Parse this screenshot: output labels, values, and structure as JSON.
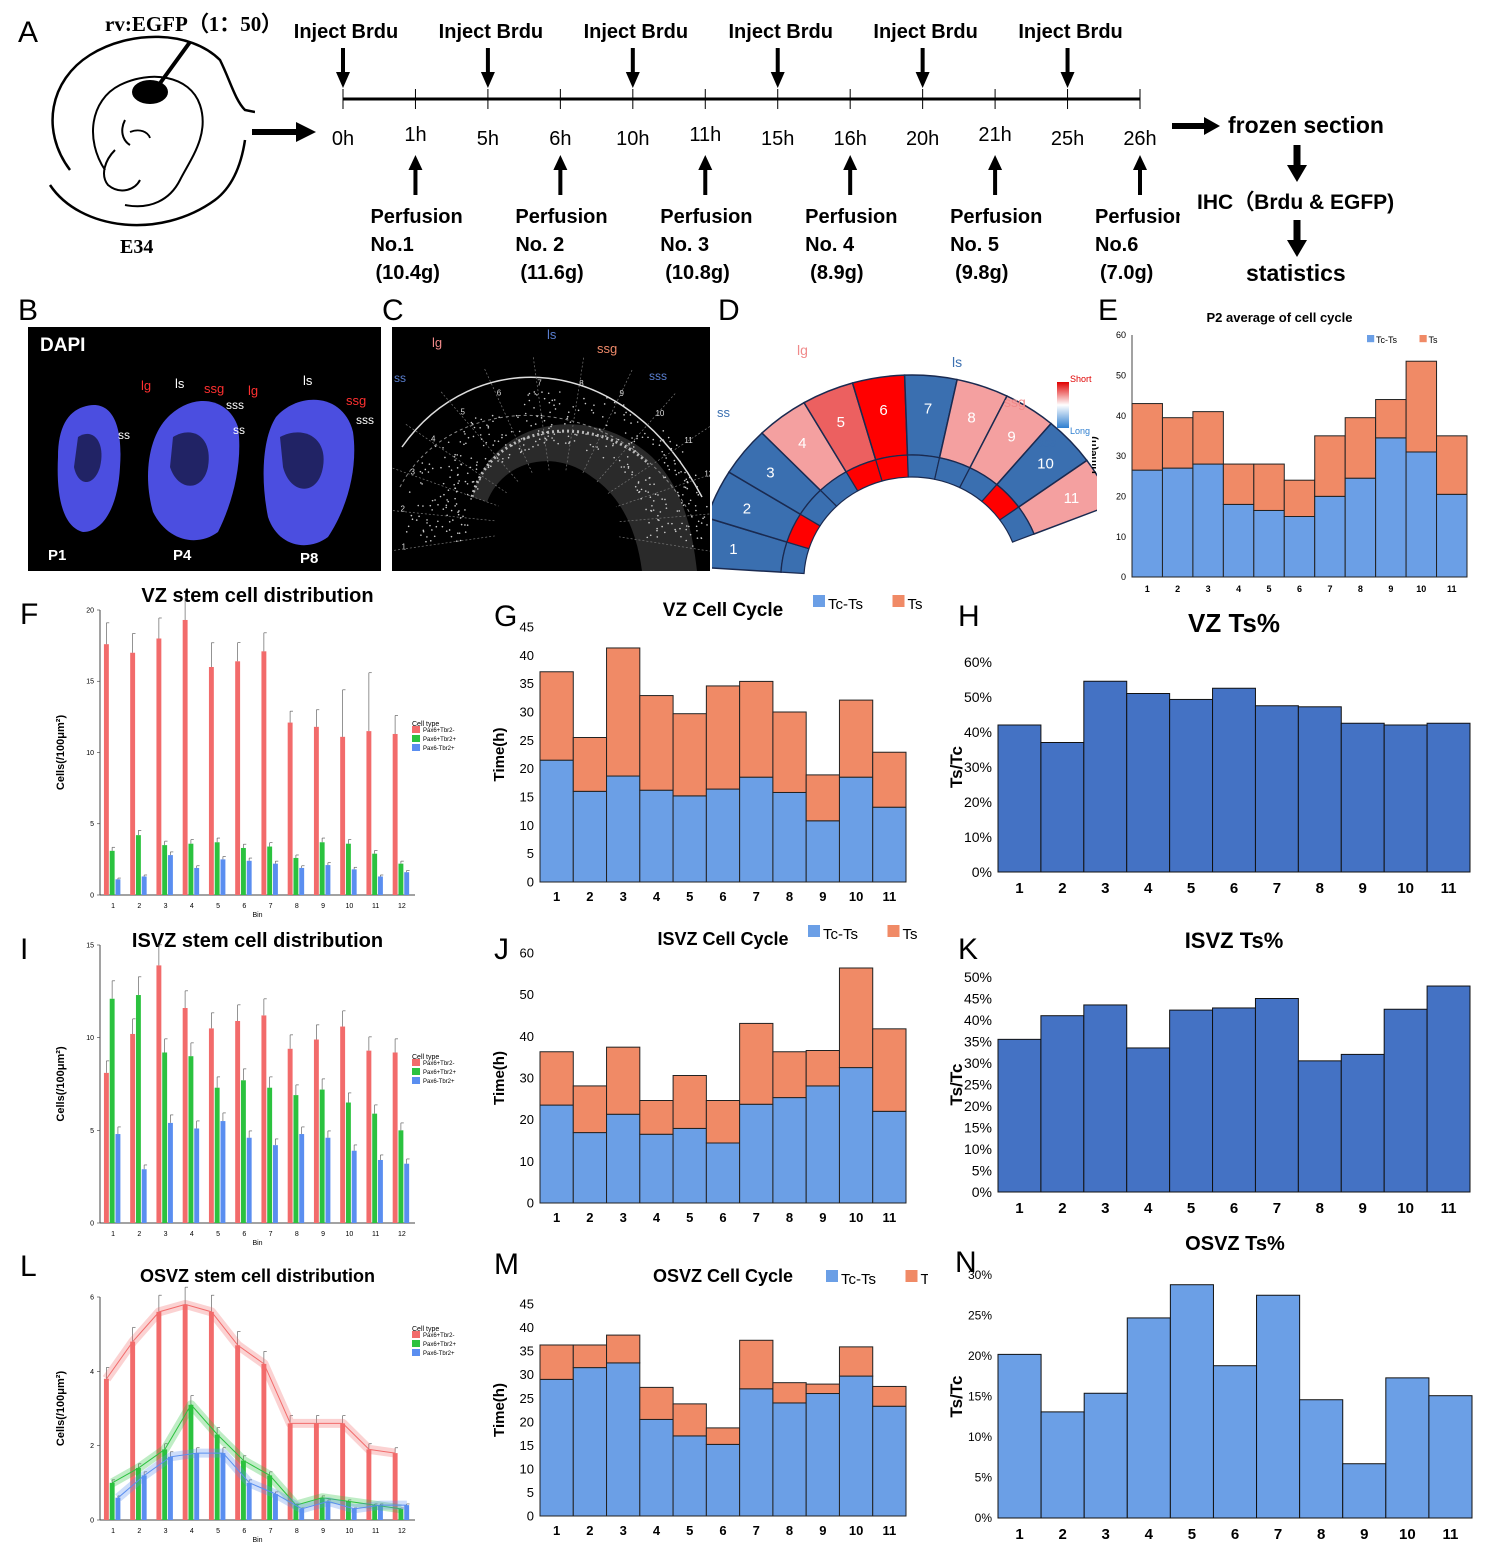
{
  "panel_a": {
    "letter": "A",
    "vector_label": "rv:EGFP（1：50）",
    "embryo_label": "E34",
    "inject_label": "Inject Brdu",
    "time_points": [
      "0h",
      "1h",
      "5h",
      "6h",
      "10h",
      "11h",
      "15h",
      "16h",
      "20h",
      "21h",
      "25h",
      "26h"
    ],
    "perfusions": [
      {
        "title": "Perfusion",
        "no": "No.1",
        "weight": "(10.4g)"
      },
      {
        "title": "Perfusion",
        "no": "No. 2",
        "weight": "(11.6g)"
      },
      {
        "title": "Perfusion",
        "no": "No. 3",
        "weight": "(10.8g)"
      },
      {
        "title": "Perfusion",
        "no": "No. 4",
        "weight": "(8.9g)"
      },
      {
        "title": "Perfusion",
        "no": "No. 5",
        "weight": "(9.8g)"
      },
      {
        "title": "Perfusion",
        "no": "No.6",
        "weight": "(7.0g)"
      }
    ],
    "flow": [
      "frozen section",
      "IHC（Brdu & EGFP)",
      "statistics"
    ]
  },
  "panel_b": {
    "letter": "B",
    "stain": "DAPI",
    "ages": [
      "P1",
      "P4",
      "P8"
    ],
    "labels": [
      "lg",
      "ls",
      "ssg",
      "sss",
      "ss"
    ]
  },
  "panel_c": {
    "letter": "C",
    "labels": [
      "lg",
      "ls",
      "ssg",
      "sss",
      "ss"
    ],
    "bins": [
      "1",
      "2",
      "3",
      "4",
      "5",
      "6",
      "7",
      "8",
      "9",
      "10",
      "11",
      "12",
      "13",
      "14"
    ]
  },
  "panel_d": {
    "letter": "D",
    "labels": [
      "lg",
      "ls",
      "ssg",
      "sss",
      "ss"
    ],
    "bins": [
      "1",
      "2",
      "3",
      "4",
      "5",
      "6",
      "7",
      "8",
      "9",
      "10",
      "11"
    ],
    "legend_short": "Short",
    "legend_long": "Long",
    "colors": {
      "long": "#3a6fb0",
      "short": "#ff0000",
      "mid": "#f4a0a0",
      "midred": "#ec6060"
    }
  },
  "panel_letters": {
    "e": "E",
    "f": "F",
    "g": "G",
    "h": "H",
    "i": "I",
    "j": "J",
    "k": "K",
    "l": "L",
    "m": "M",
    "n": "N"
  },
  "colors": {
    "tc_ts": "#6b9fe6",
    "ts": "#f08a66",
    "ts_pct_dark": "#4472c4",
    "ts_pct_light": "#6b9fe6",
    "pax6_tbr2neg": "#f26b6b",
    "pax6_tbr2pos": "#2bc23f",
    "pax6neg_tbr2pos": "#5a8ef0"
  },
  "chart_data": [
    {
      "id": "E",
      "type": "bar",
      "stacked": true,
      "title": "P2 average of cell cycle",
      "ylabel": "Time(h)",
      "xlabel": "",
      "categories": [
        "1",
        "2",
        "3",
        "4",
        "5",
        "6",
        "7",
        "8",
        "9",
        "10",
        "11"
      ],
      "ylim": [
        0,
        60
      ],
      "yticks": [
        "0",
        "10",
        "20",
        "30",
        "40",
        "50",
        "60"
      ],
      "legend": "top-right",
      "series": [
        {
          "name": "Tc-Ts",
          "values": [
            26.5,
            27,
            28,
            18,
            16.5,
            15,
            20,
            24.5,
            34.5,
            31,
            20.5
          ]
        },
        {
          "name": "Ts",
          "values": [
            16.5,
            12.5,
            13,
            10,
            11.5,
            9,
            15,
            15,
            9.5,
            22.5,
            14.5
          ]
        }
      ]
    },
    {
      "id": "F",
      "type": "bar",
      "title": "VZ stem cell distribution",
      "ylabel": "Cells(/100μm²)",
      "xlabel": "Bin",
      "categories": [
        "1",
        "2",
        "3",
        "4",
        "5",
        "6",
        "7",
        "8",
        "9",
        "10",
        "11",
        "12"
      ],
      "ylim": [
        0,
        20
      ],
      "yticks": [
        "0",
        "5",
        "10",
        "15",
        "20"
      ],
      "legend_title": "Cell type",
      "legend": "right",
      "series": [
        {
          "name": "Pax6+Tbr2-",
          "values": [
            17.6,
            17,
            18,
            19.3,
            16,
            16.4,
            17.1,
            12.1,
            11.8,
            11.1,
            11.5,
            11.3
          ],
          "err": [
            1.5,
            0,
            0,
            0,
            1.7,
            0,
            1.3,
            0.8,
            1.2,
            3.3,
            4.1,
            1.3
          ]
        },
        {
          "name": "Pax6+Tbr2+",
          "values": [
            3.1,
            4.2,
            3.5,
            3.6,
            3.7,
            3.3,
            3.4,
            2.6,
            3.7,
            3.6,
            2.9,
            2.2
          ]
        },
        {
          "name": "Pax6-Tbr2+",
          "values": [
            1.1,
            1.3,
            2.8,
            1.9,
            2.5,
            2.4,
            2.2,
            1.9,
            2.1,
            1.8,
            1.3,
            1.6
          ]
        }
      ]
    },
    {
      "id": "G",
      "type": "bar",
      "stacked": true,
      "title": "VZ Cell Cycle",
      "ylabel": "Time(h)",
      "xlabel": "",
      "categories": [
        "1",
        "2",
        "3",
        "4",
        "5",
        "6",
        "7",
        "8",
        "9",
        "10",
        "11"
      ],
      "ylim": [
        0,
        45
      ],
      "yticks": [
        "0",
        "5",
        "10",
        "15",
        "20",
        "25",
        "30",
        "35",
        "40",
        "45"
      ],
      "legend": "top-right",
      "series": [
        {
          "name": "Tc-Ts",
          "values": [
            21.5,
            16,
            18.7,
            16.2,
            15.2,
            16.4,
            18.5,
            15.8,
            10.8,
            18.5,
            13.2
          ]
        },
        {
          "name": "Ts",
          "values": [
            15.6,
            9.5,
            22.6,
            16.7,
            14.5,
            18.2,
            16.9,
            14.2,
            8.1,
            13.6,
            9.7
          ]
        }
      ]
    },
    {
      "id": "H",
      "type": "bar",
      "title": "VZ  Ts%",
      "ylabel": "Ts/Tc",
      "xlabel": "",
      "categories": [
        "1",
        "2",
        "3",
        "4",
        "5",
        "6",
        "7",
        "8",
        "9",
        "10",
        "11"
      ],
      "ylim": [
        0,
        60
      ],
      "yticks": [
        "0%",
        "10%",
        "20%",
        "30%",
        "40%",
        "50%",
        "60%"
      ],
      "series": [
        {
          "name": "",
          "values": [
            42,
            37,
            54.5,
            51,
            49.3,
            52.5,
            47.5,
            47.2,
            42.5,
            42,
            42.5
          ]
        }
      ]
    },
    {
      "id": "I",
      "type": "bar",
      "title": "ISVZ stem cell distribution",
      "ylabel": "Cells(/100μm²)",
      "xlabel": "Bin",
      "categories": [
        "1",
        "2",
        "3",
        "4",
        "5",
        "6",
        "7",
        "8",
        "9",
        "10",
        "11",
        "12"
      ],
      "ylim": [
        0,
        15
      ],
      "yticks": [
        "0",
        "5",
        "10",
        "15"
      ],
      "legend_title": "Cell type",
      "legend": "right",
      "series": [
        {
          "name": "Pax6+Tbr2-",
          "values": [
            8.1,
            10.2,
            13.9,
            11.6,
            10.5,
            10.9,
            11.2,
            9.4,
            9.9,
            10.6,
            9.3,
            9.2
          ]
        },
        {
          "name": "Pax6+Tbr2+",
          "values": [
            12.1,
            12.3,
            9.2,
            9,
            7.3,
            7.7,
            7.3,
            6.9,
            7.2,
            6.5,
            5.9,
            5
          ]
        },
        {
          "name": "Pax6-Tbr2+",
          "values": [
            4.8,
            2.9,
            5.4,
            5.1,
            5.5,
            4.6,
            4.2,
            4.8,
            4.6,
            3.9,
            3.4,
            3.2
          ]
        }
      ]
    },
    {
      "id": "J",
      "type": "bar",
      "stacked": true,
      "title": "ISVZ Cell Cycle",
      "ylabel": "Time(h)",
      "xlabel": "",
      "categories": [
        "1",
        "2",
        "3",
        "4",
        "5",
        "6",
        "7",
        "8",
        "9",
        "10",
        "11"
      ],
      "ylim": [
        0,
        60
      ],
      "yticks": [
        "0",
        "10",
        "20",
        "30",
        "40",
        "50",
        "60"
      ],
      "legend": "top-right",
      "series": [
        {
          "name": "Tc-Ts",
          "values": [
            23.5,
            16.9,
            21.3,
            16.5,
            17.9,
            14.4,
            23.7,
            25.3,
            28.1,
            32.5,
            22
          ]
        },
        {
          "name": "Ts",
          "values": [
            12.8,
            11.2,
            16.1,
            8.1,
            12.7,
            10.2,
            19.4,
            11,
            8.5,
            23.9,
            19.8
          ]
        }
      ]
    },
    {
      "id": "K",
      "type": "bar",
      "title": "ISVZ Ts%",
      "ylabel": "Ts/Tc",
      "xlabel": "",
      "categories": [
        "1",
        "2",
        "3",
        "4",
        "5",
        "6",
        "7",
        "8",
        "9",
        "10",
        "11"
      ],
      "ylim": [
        0,
        50
      ],
      "yticks": [
        "0%",
        "5%",
        "10%",
        "15%",
        "20%",
        "25%",
        "30%",
        "35%",
        "40%",
        "45%",
        "50%"
      ],
      "series": [
        {
          "name": "",
          "values": [
            35.5,
            41,
            43.5,
            33.5,
            42.3,
            42.8,
            45,
            30.5,
            32,
            42.5,
            47.9
          ]
        }
      ]
    },
    {
      "id": "L",
      "type": "bar",
      "title": "OSVZ stem cell distribution",
      "ylabel": "Cells(/100μm²)",
      "xlabel": "Bin",
      "categories": [
        "1",
        "2",
        "3",
        "4",
        "5",
        "6",
        "7",
        "8",
        "9",
        "10",
        "11",
        "12"
      ],
      "ylim": [
        0,
        6
      ],
      "yticks": [
        "0",
        "2",
        "4",
        "6"
      ],
      "legend_title": "Cell type",
      "legend": "right",
      "series": [
        {
          "name": "Pax6+Tbr2-",
          "values": [
            3.8,
            4.8,
            5.6,
            5.8,
            5.6,
            4.7,
            4.2,
            2.6,
            2.6,
            2.6,
            1.9,
            1.8
          ]
        },
        {
          "name": "Pax6+Tbr2+",
          "values": [
            1,
            1.4,
            1.9,
            3.1,
            2.3,
            1.6,
            1.2,
            0.4,
            0.6,
            0.5,
            0.4,
            0.3
          ]
        },
        {
          "name": "Pax6-Tbr2+",
          "values": [
            0.6,
            1.2,
            1.7,
            1.8,
            1.8,
            1,
            0.7,
            0.3,
            0.5,
            0.3,
            0.4,
            0.4
          ]
        }
      ]
    },
    {
      "id": "M",
      "type": "bar",
      "stacked": true,
      "title": "OSVZ Cell Cycle",
      "ylabel": "Time(h)",
      "xlabel": "",
      "categories": [
        "1",
        "2",
        "3",
        "4",
        "5",
        "6",
        "7",
        "8",
        "9",
        "10",
        "11"
      ],
      "ylim": [
        0,
        45
      ],
      "yticks": [
        "0",
        "5",
        "10",
        "15",
        "20",
        "25",
        "30",
        "35",
        "40",
        "45"
      ],
      "legend": "top-right",
      "series": [
        {
          "name": "Tc-Ts",
          "values": [
            29,
            31.5,
            32.5,
            20.5,
            17,
            15.2,
            27,
            24,
            26,
            29.7,
            23.3
          ]
        },
        {
          "name": "Ts",
          "values": [
            7.3,
            4.8,
            5.9,
            6.8,
            6.8,
            3.5,
            10.3,
            4.3,
            2,
            6.2,
            4.2
          ]
        }
      ]
    },
    {
      "id": "N",
      "type": "bar",
      "title": "OSVZ Ts%",
      "ylabel": "Ts/Tc",
      "xlabel": "",
      "categories": [
        "1",
        "2",
        "3",
        "4",
        "5",
        "6",
        "7",
        "8",
        "9",
        "10",
        "11"
      ],
      "ylim": [
        0,
        30
      ],
      "yticks": [
        "0%",
        "5%",
        "10%",
        "15%",
        "20%",
        "25%",
        "30%"
      ],
      "series": [
        {
          "name": "",
          "values": [
            20.2,
            13.1,
            15.4,
            24.7,
            28.8,
            18.8,
            27.5,
            14.6,
            6.7,
            17.3,
            15.1
          ]
        }
      ]
    }
  ]
}
